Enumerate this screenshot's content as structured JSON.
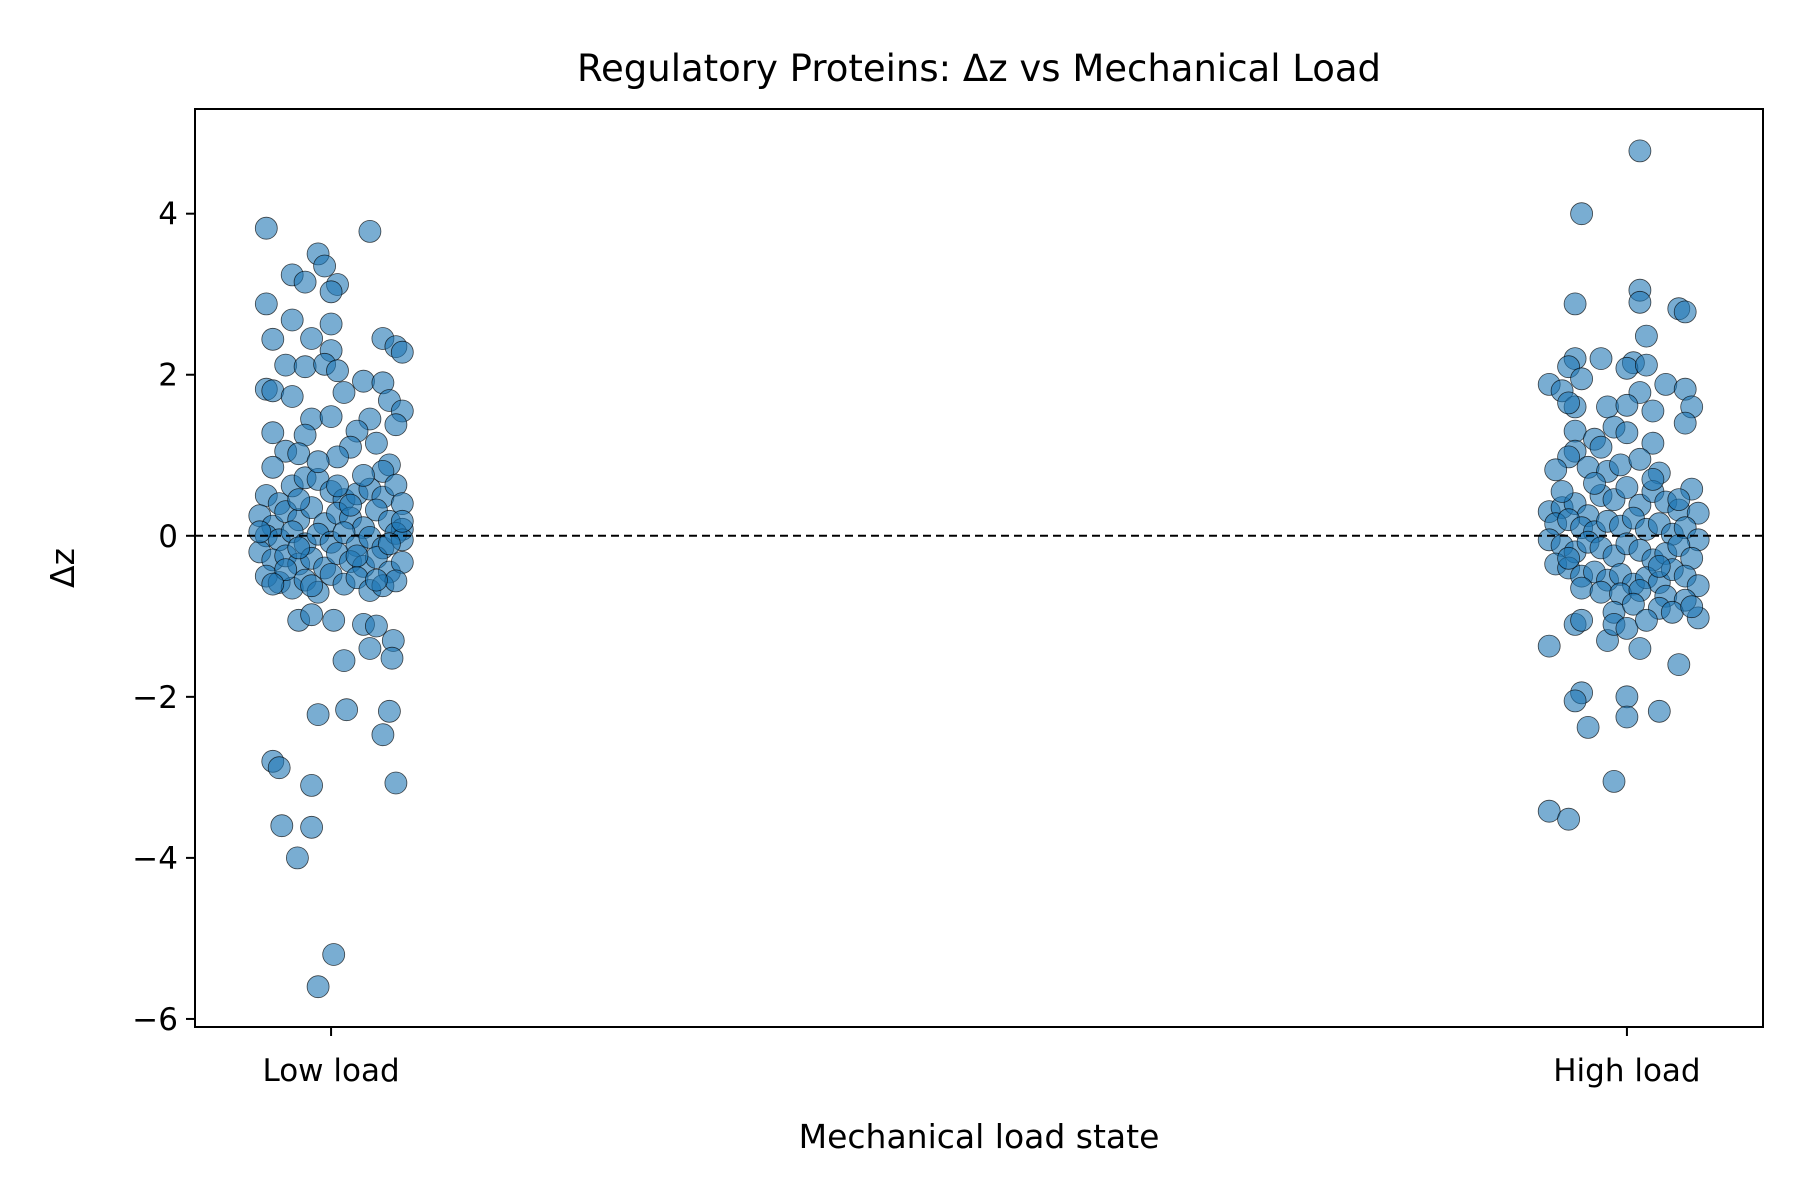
{
  "chart_data": {
    "type": "scatter",
    "title": "Regulatory Proteins: Δz vs Mechanical Load",
    "xlabel": "Mechanical load state",
    "ylabel": "Δz",
    "categories": [
      "Low load",
      "High load"
    ],
    "x_ticks": [
      "Low load",
      "High load"
    ],
    "y_ticks": [
      {
        "value": 4,
        "label": "4"
      },
      {
        "value": 2,
        "label": "2"
      },
      {
        "value": 0,
        "label": "0"
      },
      {
        "value": -2,
        "label": "−2"
      },
      {
        "value": -4,
        "label": "−4"
      },
      {
        "value": -6,
        "label": "−6"
      }
    ],
    "xlim": [
      -0.105,
      1.105
    ],
    "ylim": [
      -6.1,
      5.3
    ],
    "reference_line": {
      "y": 0,
      "style": "dashed",
      "color": "#000000"
    },
    "grid": false,
    "legend": "none",
    "point_color": "#1f77b4",
    "series": [
      {
        "category": "Low load",
        "points": [
          [
            -0.05,
            3.82
          ],
          [
            0.03,
            3.78
          ],
          [
            -0.01,
            3.5
          ],
          [
            -0.005,
            3.35
          ],
          [
            -0.03,
            3.24
          ],
          [
            -0.02,
            3.15
          ],
          [
            0.005,
            3.12
          ],
          [
            0.0,
            3.03
          ],
          [
            -0.05,
            2.88
          ],
          [
            -0.03,
            2.68
          ],
          [
            -0.0,
            2.63
          ],
          [
            0.04,
            2.45
          ],
          [
            0.05,
            2.35
          ],
          [
            -0.045,
            2.44
          ],
          [
            -0.015,
            2.45
          ],
          [
            0.0,
            2.3
          ],
          [
            0.055,
            2.28
          ],
          [
            -0.035,
            2.12
          ],
          [
            -0.02,
            2.1
          ],
          [
            -0.005,
            2.13
          ],
          [
            0.005,
            2.05
          ],
          [
            0.025,
            1.92
          ],
          [
            0.04,
            1.9
          ],
          [
            -0.05,
            1.82
          ],
          [
            -0.045,
            1.8
          ],
          [
            0.01,
            1.78
          ],
          [
            0.045,
            1.68
          ],
          [
            0.055,
            1.55
          ],
          [
            -0.03,
            1.73
          ],
          [
            -0.015,
            1.45
          ],
          [
            0.0,
            1.48
          ],
          [
            0.03,
            1.45
          ],
          [
            0.05,
            1.38
          ],
          [
            -0.045,
            1.28
          ],
          [
            0.02,
            1.3
          ],
          [
            -0.02,
            1.25
          ],
          [
            0.035,
            1.15
          ],
          [
            0.015,
            1.1
          ],
          [
            -0.035,
            1.05
          ],
          [
            -0.025,
            1.02
          ],
          [
            0.005,
            0.98
          ],
          [
            0.045,
            0.88
          ],
          [
            0.04,
            0.8
          ],
          [
            -0.05,
            0.5
          ],
          [
            -0.04,
            0.4
          ],
          [
            -0.03,
            0.62
          ],
          [
            -0.02,
            0.72
          ],
          [
            -0.01,
            0.7
          ],
          [
            0.0,
            0.55
          ],
          [
            0.01,
            0.45
          ],
          [
            0.02,
            0.52
          ],
          [
            0.03,
            0.58
          ],
          [
            0.04,
            0.48
          ],
          [
            0.05,
            0.63
          ],
          [
            0.055,
            0.4
          ],
          [
            -0.055,
            0.25
          ],
          [
            -0.045,
            0.12
          ],
          [
            -0.035,
            0.3
          ],
          [
            -0.025,
            0.2
          ],
          [
            -0.015,
            0.35
          ],
          [
            -0.005,
            0.15
          ],
          [
            0.005,
            0.28
          ],
          [
            0.015,
            0.22
          ],
          [
            0.025,
            0.1
          ],
          [
            0.035,
            0.32
          ],
          [
            0.045,
            0.18
          ],
          [
            0.055,
            0.08
          ],
          [
            -0.05,
            0.0
          ],
          [
            -0.04,
            -0.05
          ],
          [
            -0.03,
            0.05
          ],
          [
            -0.02,
            -0.1
          ],
          [
            -0.01,
            0.02
          ],
          [
            0.0,
            -0.08
          ],
          [
            0.01,
            0.04
          ],
          [
            0.02,
            -0.12
          ],
          [
            0.03,
            -0.02
          ],
          [
            0.04,
            -0.15
          ],
          [
            0.05,
            0.03
          ],
          [
            0.055,
            -0.05
          ],
          [
            -0.055,
            -0.2
          ],
          [
            -0.045,
            -0.3
          ],
          [
            -0.035,
            -0.25
          ],
          [
            -0.025,
            -0.35
          ],
          [
            -0.015,
            -0.28
          ],
          [
            -0.005,
            -0.4
          ],
          [
            0.005,
            -0.22
          ],
          [
            0.015,
            -0.32
          ],
          [
            0.025,
            -0.38
          ],
          [
            0.035,
            -0.27
          ],
          [
            0.045,
            -0.45
          ],
          [
            0.055,
            -0.33
          ],
          [
            -0.05,
            -0.5
          ],
          [
            -0.04,
            -0.58
          ],
          [
            -0.03,
            -0.65
          ],
          [
            -0.02,
            -0.55
          ],
          [
            -0.01,
            -0.7
          ],
          [
            0.0,
            -0.48
          ],
          [
            0.01,
            -0.6
          ],
          [
            0.02,
            -0.52
          ],
          [
            0.03,
            -0.68
          ],
          [
            0.04,
            -0.62
          ],
          [
            0.05,
            -0.56
          ],
          [
            -0.045,
            0.85
          ],
          [
            -0.01,
            0.92
          ],
          [
            0.025,
            0.75
          ],
          [
            -0.025,
            -0.15
          ],
          [
            0.015,
            0.38
          ],
          [
            -0.035,
            -0.42
          ],
          [
            0.045,
            -0.1
          ],
          [
            -0.055,
            0.05
          ],
          [
            0.035,
            -0.55
          ],
          [
            -0.015,
            -0.62
          ],
          [
            0.005,
            0.62
          ],
          [
            0.055,
            0.18
          ],
          [
            -0.045,
            -0.6
          ],
          [
            -0.025,
            0.45
          ],
          [
            0.02,
            -0.25
          ],
          [
            -0.025,
            -1.05
          ],
          [
            -0.015,
            -0.98
          ],
          [
            0.002,
            -1.05
          ],
          [
            0.025,
            -1.1
          ],
          [
            0.035,
            -1.12
          ],
          [
            0.03,
            -1.4
          ],
          [
            0.048,
            -1.3
          ],
          [
            0.01,
            -1.55
          ],
          [
            0.047,
            -1.52
          ],
          [
            -0.01,
            -2.22
          ],
          [
            0.012,
            -2.16
          ],
          [
            0.045,
            -2.18
          ],
          [
            0.04,
            -2.47
          ],
          [
            -0.045,
            -2.8
          ],
          [
            -0.04,
            -2.88
          ],
          [
            -0.015,
            -3.1
          ],
          [
            0.05,
            -3.07
          ],
          [
            -0.038,
            -3.6
          ],
          [
            -0.015,
            -3.62
          ],
          [
            -0.026,
            -4.0
          ],
          [
            0.002,
            -5.2
          ],
          [
            -0.01,
            -5.6
          ]
        ]
      },
      {
        "category": "High load",
        "points": [
          [
            1.01,
            4.78
          ],
          [
            0.965,
            4.0
          ],
          [
            0.96,
            2.88
          ],
          [
            1.01,
            3.05
          ],
          [
            1.01,
            2.9
          ],
          [
            1.04,
            2.82
          ],
          [
            1.045,
            2.78
          ],
          [
            1.015,
            2.48
          ],
          [
            0.96,
            2.2
          ],
          [
            0.955,
            2.1
          ],
          [
            0.98,
            2.2
          ],
          [
            1.005,
            2.15
          ],
          [
            1.0,
            2.08
          ],
          [
            1.015,
            2.12
          ],
          [
            0.965,
            1.95
          ],
          [
            0.94,
            1.88
          ],
          [
            0.95,
            1.8
          ],
          [
            1.03,
            1.88
          ],
          [
            1.045,
            1.82
          ],
          [
            1.01,
            1.78
          ],
          [
            0.96,
            1.6
          ],
          [
            0.955,
            1.65
          ],
          [
            0.985,
            1.6
          ],
          [
            1.0,
            1.62
          ],
          [
            1.02,
            1.55
          ],
          [
            1.05,
            1.6
          ],
          [
            1.045,
            1.4
          ],
          [
            0.96,
            1.3
          ],
          [
            0.975,
            1.2
          ],
          [
            0.99,
            1.35
          ],
          [
            1.0,
            1.28
          ],
          [
            1.02,
            1.15
          ],
          [
            0.96,
            1.05
          ],
          [
            0.98,
            1.1
          ],
          [
            0.955,
            0.98
          ],
          [
            0.97,
            0.85
          ],
          [
            0.985,
            0.8
          ],
          [
            0.995,
            0.88
          ],
          [
            1.01,
            0.95
          ],
          [
            1.025,
            0.78
          ],
          [
            0.945,
            0.82
          ],
          [
            0.94,
            0.3
          ],
          [
            0.95,
            0.35
          ],
          [
            0.96,
            0.4
          ],
          [
            0.97,
            0.25
          ],
          [
            0.98,
            0.5
          ],
          [
            0.99,
            0.45
          ],
          [
            1.0,
            0.6
          ],
          [
            1.01,
            0.38
          ],
          [
            1.02,
            0.55
          ],
          [
            1.03,
            0.42
          ],
          [
            1.04,
            0.32
          ],
          [
            1.05,
            0.58
          ],
          [
            1.055,
            0.28
          ],
          [
            0.945,
            0.15
          ],
          [
            0.955,
            0.2
          ],
          [
            0.965,
            0.1
          ],
          [
            0.975,
            0.05
          ],
          [
            0.985,
            0.18
          ],
          [
            0.995,
            0.12
          ],
          [
            1.005,
            0.22
          ],
          [
            1.015,
            0.08
          ],
          [
            1.025,
            0.15
          ],
          [
            1.035,
            0.02
          ],
          [
            1.045,
            0.1
          ],
          [
            1.055,
            -0.05
          ],
          [
            0.94,
            -0.05
          ],
          [
            0.95,
            -0.12
          ],
          [
            0.96,
            -0.2
          ],
          [
            0.97,
            -0.08
          ],
          [
            0.98,
            -0.15
          ],
          [
            0.99,
            -0.25
          ],
          [
            1.0,
            -0.1
          ],
          [
            1.01,
            -0.18
          ],
          [
            1.02,
            -0.3
          ],
          [
            1.03,
            -0.22
          ],
          [
            1.04,
            -0.12
          ],
          [
            1.05,
            -0.28
          ],
          [
            0.945,
            -0.35
          ],
          [
            0.955,
            -0.4
          ],
          [
            0.965,
            -0.5
          ],
          [
            0.975,
            -0.45
          ],
          [
            0.985,
            -0.55
          ],
          [
            0.995,
            -0.48
          ],
          [
            1.005,
            -0.6
          ],
          [
            1.015,
            -0.52
          ],
          [
            1.025,
            -0.58
          ],
          [
            1.035,
            -0.42
          ],
          [
            1.045,
            -0.5
          ],
          [
            1.055,
            -0.62
          ],
          [
            0.965,
            -0.65
          ],
          [
            0.98,
            -0.7
          ],
          [
            0.995,
            -0.72
          ],
          [
            1.01,
            -0.68
          ],
          [
            1.03,
            -0.75
          ],
          [
            1.045,
            -0.8
          ],
          [
            0.99,
            -0.95
          ],
          [
            1.005,
            -0.85
          ],
          [
            1.025,
            -0.9
          ],
          [
            1.035,
            -0.95
          ],
          [
            1.055,
            -1.02
          ],
          [
            1.05,
            -0.88
          ],
          [
            0.96,
            -1.1
          ],
          [
            0.965,
            -1.05
          ],
          [
            0.985,
            -1.3
          ],
          [
            0.99,
            -1.1
          ],
          [
            1.0,
            -1.15
          ],
          [
            1.015,
            -1.05
          ],
          [
            0.94,
            -1.37
          ],
          [
            1.01,
            -1.4
          ],
          [
            1.04,
            -1.6
          ],
          [
            0.965,
            -1.95
          ],
          [
            0.96,
            -2.05
          ],
          [
            1.0,
            -2.0
          ],
          [
            1.025,
            -2.18
          ],
          [
            0.97,
            -2.38
          ],
          [
            1.0,
            -2.25
          ],
          [
            0.94,
            -3.42
          ],
          [
            0.955,
            -3.52
          ],
          [
            0.99,
            -3.05
          ],
          [
            0.95,
            0.55
          ],
          [
            1.02,
            0.7
          ],
          [
            0.975,
            0.65
          ],
          [
            1.04,
            0.45
          ],
          [
            0.955,
            -0.28
          ],
          [
            1.025,
            -0.38
          ]
        ]
      }
    ]
  }
}
